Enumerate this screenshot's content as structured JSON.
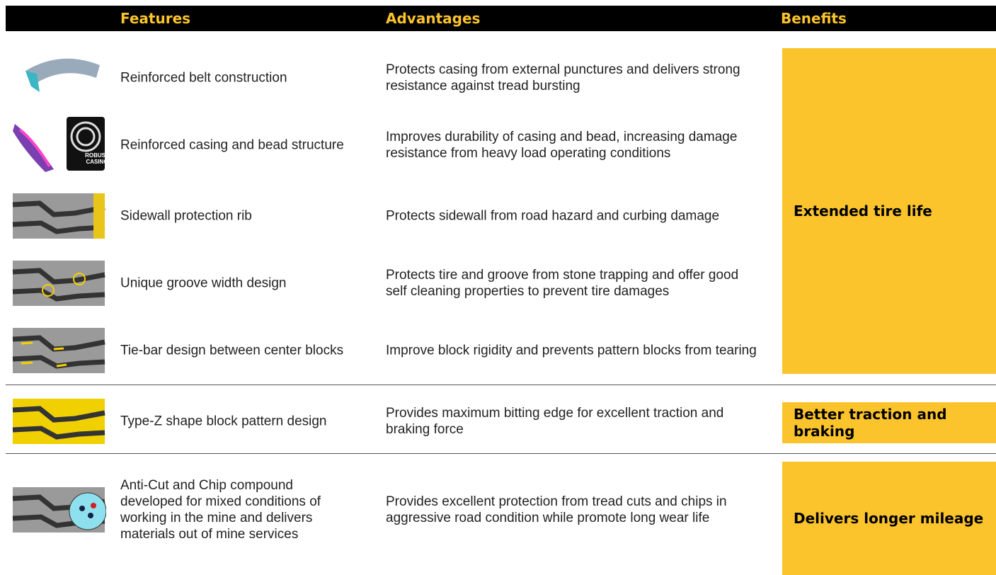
{
  "header": {
    "columns": [
      "Features",
      "Advantages",
      "Benefits"
    ]
  },
  "groups": [
    {
      "benefit": "Extended tire life",
      "rows": [
        {
          "feature": "Reinforced belt construction",
          "advantage": "Protects casing from external punctures and delivers strong resistance against tread bursting"
        },
        {
          "feature": "Reinforced casing and bead structure",
          "advantage": "Improves durability of casing and bead, increasing damage resistance from heavy load operating conditions",
          "icon_label": [
            "ROBUST",
            "CASING"
          ]
        },
        {
          "feature": "Sidewall protection rib",
          "advantage": "Protects sidewall from road hazard and curbing damage"
        },
        {
          "feature": "Unique groove width design",
          "advantage": "Protects tire and groove from stone trapping and offer good self cleaning properties to prevent tire damages"
        },
        {
          "feature": "Tie-bar design between center blocks",
          "advantage": "Improve block rigidity and prevents pattern blocks from tearing"
        }
      ]
    },
    {
      "benefit": "Better traction and braking",
      "rows": [
        {
          "feature": "Type-Z shape block pattern design",
          "advantage": "Provides maximum bitting edge for excellent traction and braking force"
        }
      ]
    },
    {
      "benefit": "Delivers longer mileage",
      "rows": [
        {
          "feature": "Anti-Cut and Chip compound developed for mixed conditions of working in the mine and delivers materials out of mine services",
          "advantage": "Provides excellent protection from tread cuts and chips in aggressive road condition while promote long wear life"
        }
      ]
    }
  ]
}
